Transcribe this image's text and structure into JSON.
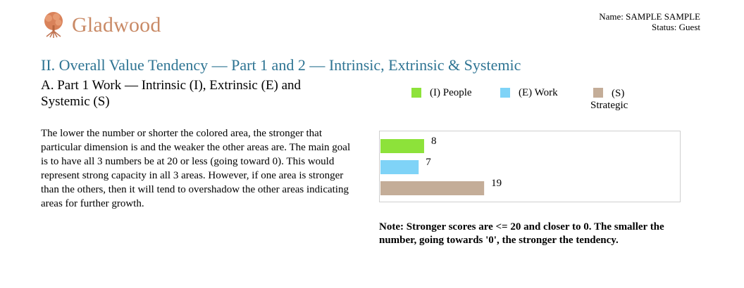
{
  "header": {
    "logo_text": "Gladwood",
    "logo_icon": "tree-icon",
    "name_line": "Name: SAMPLE SAMPLE",
    "status_line": "Status: Guest"
  },
  "section": {
    "title": "II. Overall Value Tendency — Part 1 and 2 — Intrinsic, Extrinsic & Systemic",
    "subtitle": "A. Part 1 Work — Intrinsic (I), Extrinsic (E) and Systemic (S)",
    "description": "The lower the number or shorter the colored area, the stronger that particular dimension is and the weaker the other areas are. The main goal is to have all 3 numbers be at 20 or less (going toward 0). This would represent strong capacity in all 3 areas. However, if one area is stronger than the others, then it will tend to overshadow the other areas indicating areas for further growth.",
    "note": "Note: Stronger scores are <= 20 and closer to 0. The smaller the number, going towards '0', the stronger the tendency."
  },
  "legend": {
    "people": "(I) People",
    "work": "(E) Work",
    "strategic_line1": "(S)",
    "strategic_line2": "Strategic"
  },
  "colors": {
    "people": "#8de23a",
    "work": "#7fd3f7",
    "strategic": "#c4ad98",
    "title": "#2e7493",
    "logo": "#c98a66"
  },
  "chart_data": {
    "type": "bar",
    "orientation": "horizontal",
    "categories": [
      "(I) People",
      "(E) Work",
      "(S) Strategic"
    ],
    "values": [
      8,
      7,
      19
    ],
    "xlim": [
      0,
      55
    ],
    "grid": false,
    "legend_position": "top"
  }
}
